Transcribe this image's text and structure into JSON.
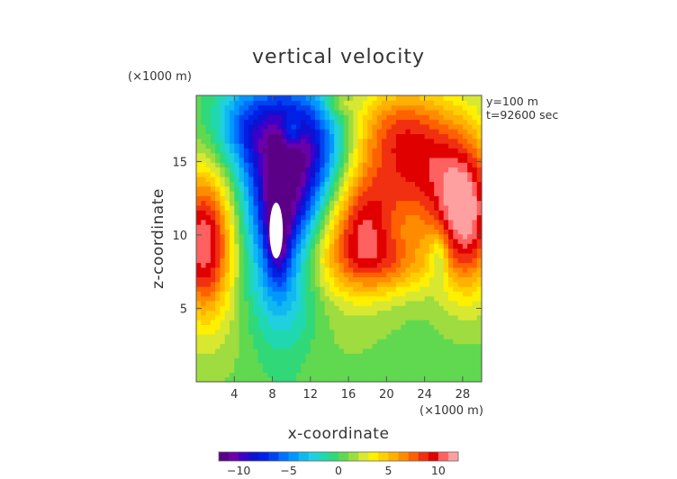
{
  "chart_data": {
    "type": "heatmap",
    "title": "vertical velocity",
    "xlabel": "x-coordinate",
    "ylabel": "z-coordinate",
    "x_unit": "(×1000 m)",
    "y_unit": "(×1000 m)",
    "annotations": [
      "y=100 m",
      "t=92600 sec"
    ],
    "xlim": [
      0,
      30
    ],
    "ylim": [
      0,
      19.5
    ],
    "x_ticks": [
      "4",
      "8",
      "12",
      "16",
      "20",
      "24",
      "28"
    ],
    "y_ticks": [
      "5",
      "10",
      "15"
    ],
    "zlim": [
      -12,
      12
    ],
    "colorbar_ticks": [
      "−10",
      "−5",
      "0",
      "5",
      "10"
    ],
    "colorbar_colors": [
      "#5b0086",
      "#6a00a8",
      "#3c00c8",
      "#1010d0",
      "#0020e6",
      "#0042f0",
      "#0070ff",
      "#0098ff",
      "#10b8f0",
      "#20d0e0",
      "#20d8b0",
      "#30d878",
      "#60d850",
      "#9edc40",
      "#d8e830",
      "#fff000",
      "#ffd000",
      "#ffb000",
      "#ff8c00",
      "#ff6000",
      "#f03010",
      "#e00000",
      "#ff6060",
      "#ffa0a0"
    ],
    "features": [
      {
        "x": 9.0,
        "z": 11.5,
        "w": -9.5,
        "sx": 2.6,
        "sz": 5.5
      },
      {
        "x": 10.0,
        "z": 15.5,
        "w": -5.0,
        "sx": 3.5,
        "sz": 3.0
      },
      {
        "x": 5.0,
        "z": 17.5,
        "w": -4.5,
        "sx": 2.5,
        "sz": 2.0
      },
      {
        "x": 13.5,
        "z": 16.5,
        "w": -3.5,
        "sx": 2.5,
        "sz": 2.5
      },
      {
        "x": 8.6,
        "z": 10.3,
        "w": -6.0,
        "sx": 0.8,
        "sz": 2.2
      },
      {
        "x": 0.8,
        "z": 9.5,
        "w": 10.5,
        "sx": 2.2,
        "sz": 3.5
      },
      {
        "x": 28.5,
        "z": 11.0,
        "w": 9.0,
        "sx": 2.2,
        "sz": 3.5
      },
      {
        "x": 17.5,
        "z": 11.0,
        "w": 7.0,
        "sx": 2.5,
        "sz": 3.0
      },
      {
        "x": 24.0,
        "z": 14.5,
        "w": 8.0,
        "sx": 4.0,
        "sz": 3.5
      },
      {
        "x": 20.0,
        "z": 17.5,
        "w": 3.5,
        "sx": 3.5,
        "sz": 2.0
      },
      {
        "x": 14.0,
        "z": 8.5,
        "w": 3.5,
        "sx": 4.0,
        "sz": 2.0
      },
      {
        "x": 21.0,
        "z": 8.0,
        "w": 3.5,
        "sx": 3.0,
        "sz": 1.5
      },
      {
        "x": 25.5,
        "z": 8.5,
        "w": -3.5,
        "sx": 0.7,
        "sz": 1.2
      },
      {
        "x": 8.5,
        "z": 3.0,
        "w": 0.8,
        "sx": 8.0,
        "sz": 3.0
      },
      {
        "x": 15.0,
        "z": 19.0,
        "w": 2.5,
        "sx": 1.0,
        "sz": 0.7
      },
      {
        "x": 10.0,
        "z": 17.0,
        "w": 4.0,
        "sx": 0.7,
        "sz": 0.7
      }
    ],
    "white_core": {
      "x": 8.4,
      "z": 10.3,
      "rx": 0.7,
      "rz": 1.9
    }
  }
}
